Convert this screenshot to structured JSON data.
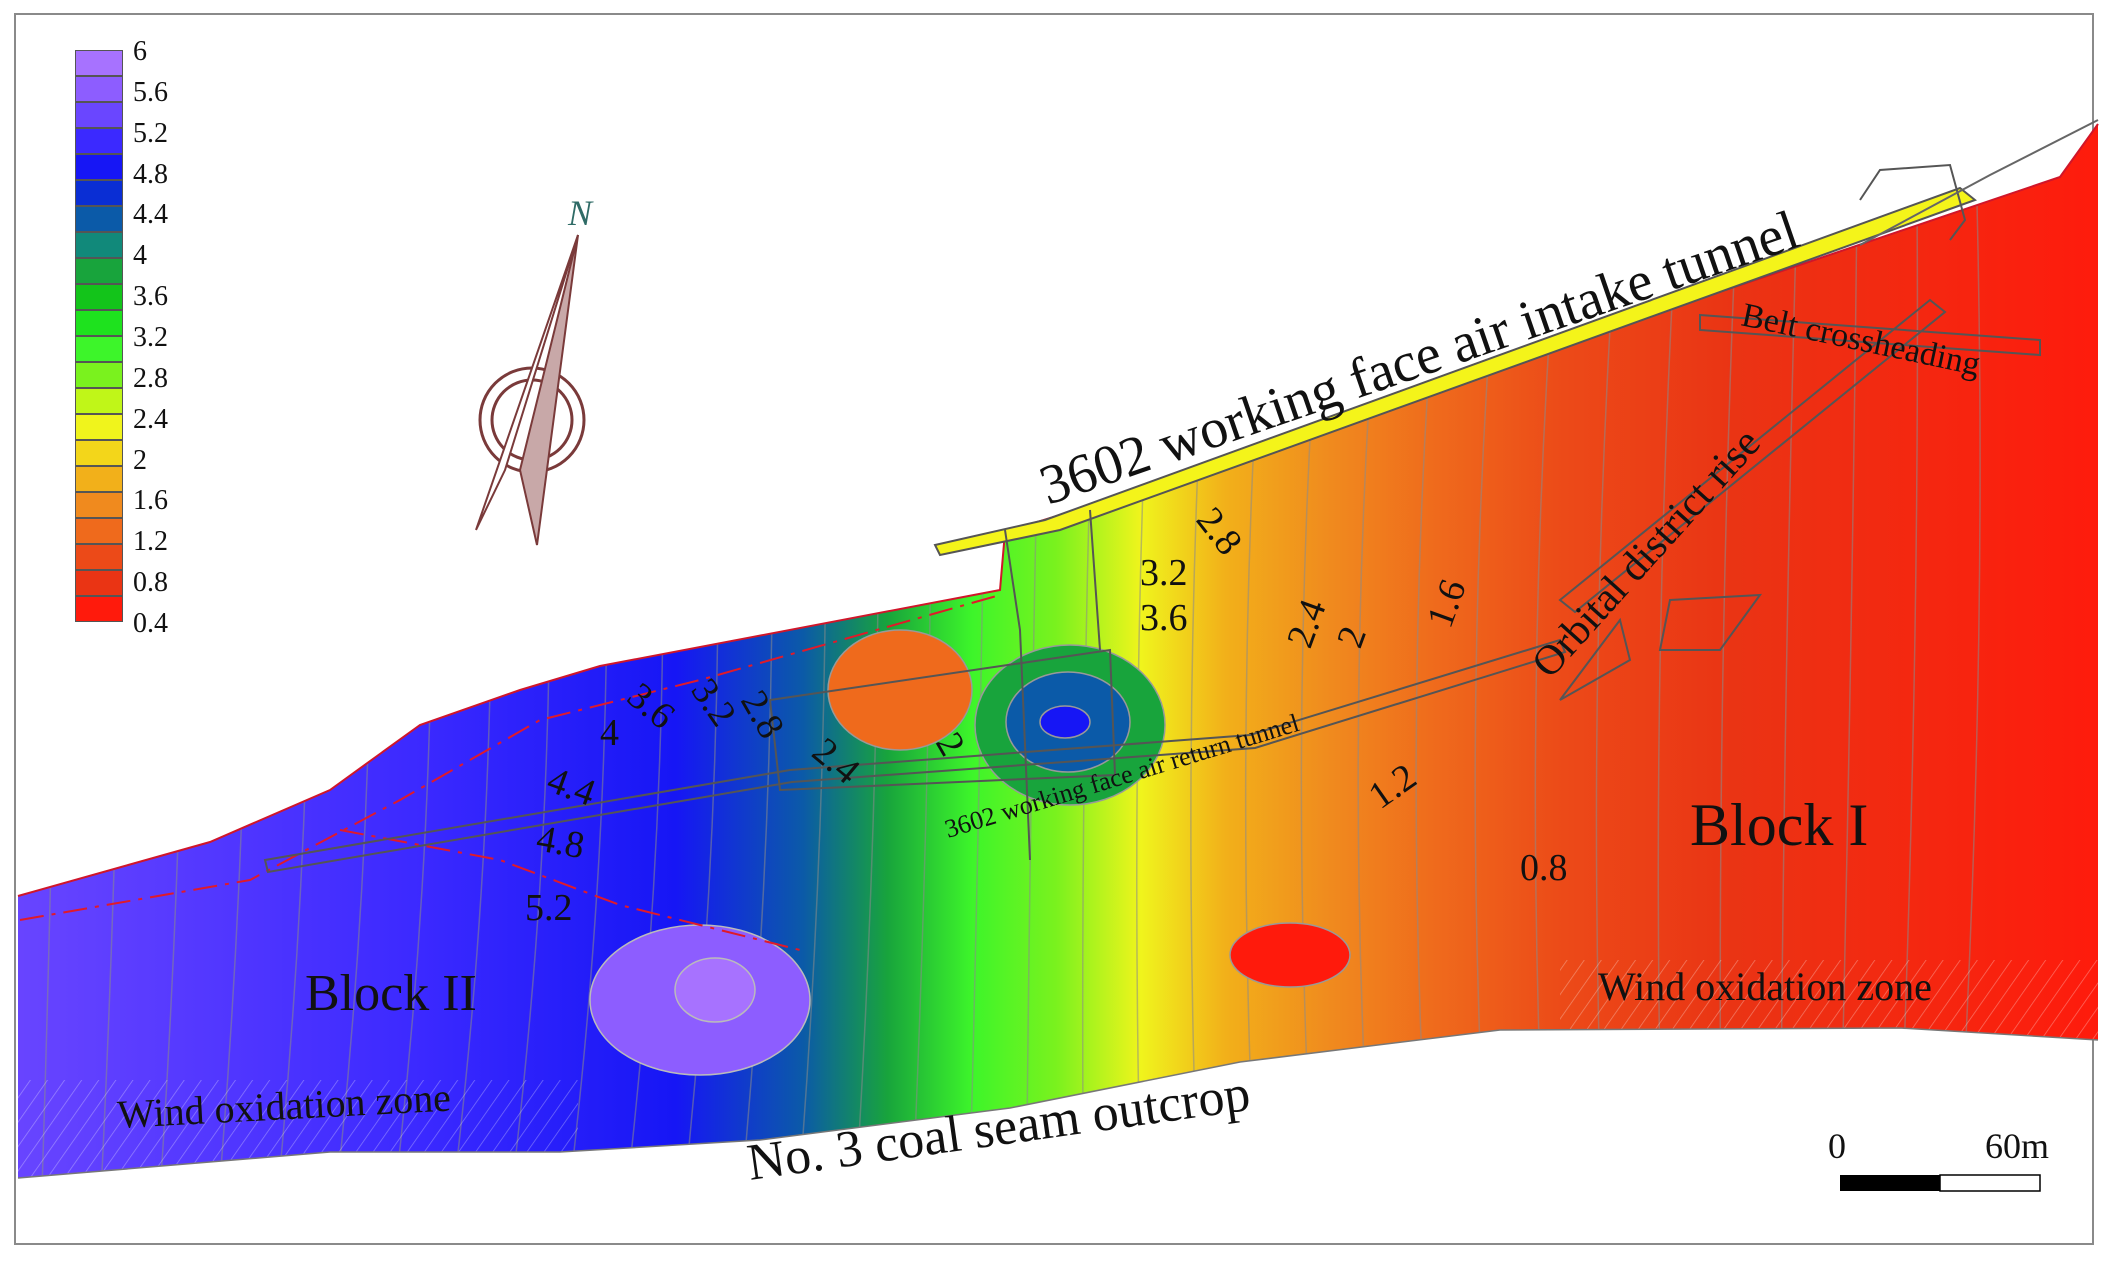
{
  "legend": {
    "ticks": [
      "6",
      "5.6",
      "5.2",
      "4.8",
      "4.4",
      "4",
      "3.6",
      "3.2",
      "2.8",
      "2.4",
      "2",
      "1.6",
      "1.2",
      "0.8",
      "0.4"
    ],
    "colors": [
      "#a772ff",
      "#8d5dff",
      "#6a46ff",
      "#3b29ff",
      "#1616f5",
      "#0a2ed4",
      "#0b5aa8",
      "#11897a",
      "#18a43c",
      "#13c41a",
      "#1ee21e",
      "#3df52a",
      "#7af21e",
      "#c0f618",
      "#f0f41c",
      "#f3d61a",
      "#f2b01a",
      "#f08a1e",
      "#ef6a1c",
      "#ec4a18",
      "#ea3414",
      "#ff1a0c"
    ]
  },
  "compass": {
    "label": "N"
  },
  "labels": {
    "intake": "3602 working face air intake tunnel",
    "belt": "Belt crossheading",
    "orbital": "Orbital district rise",
    "return": "3602 working face air return tunnel",
    "block1": "Block I",
    "block2": "Block II",
    "oxid_right": "Wind oxidation zone",
    "oxid_left": "Wind oxidation zone",
    "outcrop": "No. 3 coal seam outcrop"
  },
  "contour_labels": [
    "2.8",
    "3.2",
    "3.6",
    "2.4",
    "2",
    "1.6",
    "3.6",
    "3.2",
    "2.8",
    "2.4",
    "2",
    "4",
    "4.4",
    "4.8",
    "5.2",
    "1.2",
    "0.8"
  ],
  "scalebar": {
    "start": "0",
    "end": "60m"
  }
}
